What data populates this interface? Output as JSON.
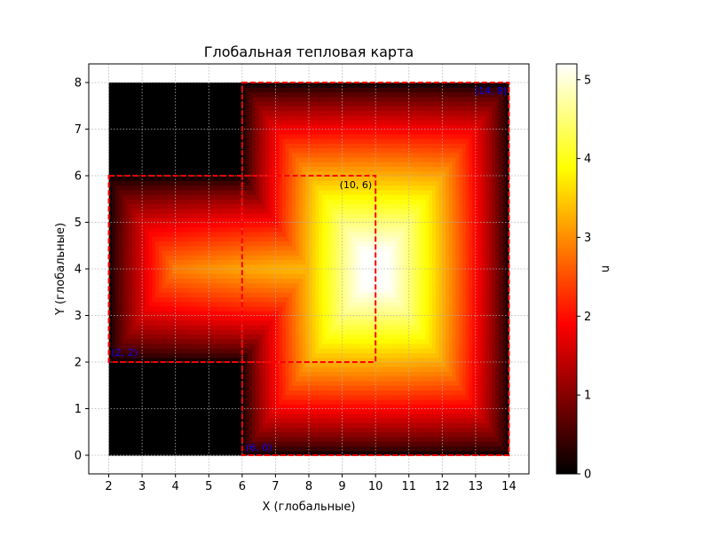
{
  "chart_data": {
    "type": "heatmap",
    "title": "Глобальная тепловая карта",
    "xlabel": "X (глобальные)",
    "ylabel": "Y (глобальные)",
    "xlim": [
      1.4,
      14.6
    ],
    "ylim": [
      -0.4,
      8.4
    ],
    "x_ticks": [
      2,
      3,
      4,
      5,
      6,
      7,
      8,
      9,
      10,
      11,
      12,
      13,
      14
    ],
    "y_ticks": [
      0,
      1,
      2,
      3,
      4,
      5,
      6,
      7,
      8
    ],
    "grid": true,
    "grid_style": "dotted",
    "colormap": "hot",
    "colorbar": {
      "label": "u",
      "min": 0,
      "max": 5.2,
      "ticks": [
        0,
        1,
        2,
        3,
        4,
        5
      ]
    },
    "field": {
      "peak_value": 5.2,
      "peak_location": [
        9.6,
        4.0
      ],
      "regions": [
        {
          "x": [
            6,
            14
          ],
          "y": [
            0,
            8
          ]
        },
        {
          "x": [
            2,
            10
          ],
          "y": [
            2,
            6
          ]
        }
      ],
      "zero_regions": [
        {
          "x": [
            2,
            6
          ],
          "y": [
            0,
            2
          ]
        },
        {
          "x": [
            2,
            6
          ],
          "y": [
            6,
            8
          ]
        }
      ]
    },
    "subdomains": [
      {
        "corners": [
          [
            6,
            0
          ],
          [
            14,
            8
          ]
        ],
        "color": "#ff0000",
        "style": "dashed"
      },
      {
        "corners": [
          [
            2,
            2
          ],
          [
            10,
            6
          ]
        ],
        "color": "#ff0000",
        "style": "dashed"
      }
    ],
    "annotations": [
      {
        "text": "(6, 0)",
        "x": 6,
        "y": 0,
        "color": "#0000ff"
      },
      {
        "text": "(14, 8)",
        "x": 14,
        "y": 8,
        "color": "#0000ff"
      },
      {
        "text": "(2, 2)",
        "x": 2,
        "y": 2,
        "color": "#0000ff"
      },
      {
        "text": "(10, 6)",
        "x": 10,
        "y": 6,
        "color": "#000000"
      }
    ]
  }
}
